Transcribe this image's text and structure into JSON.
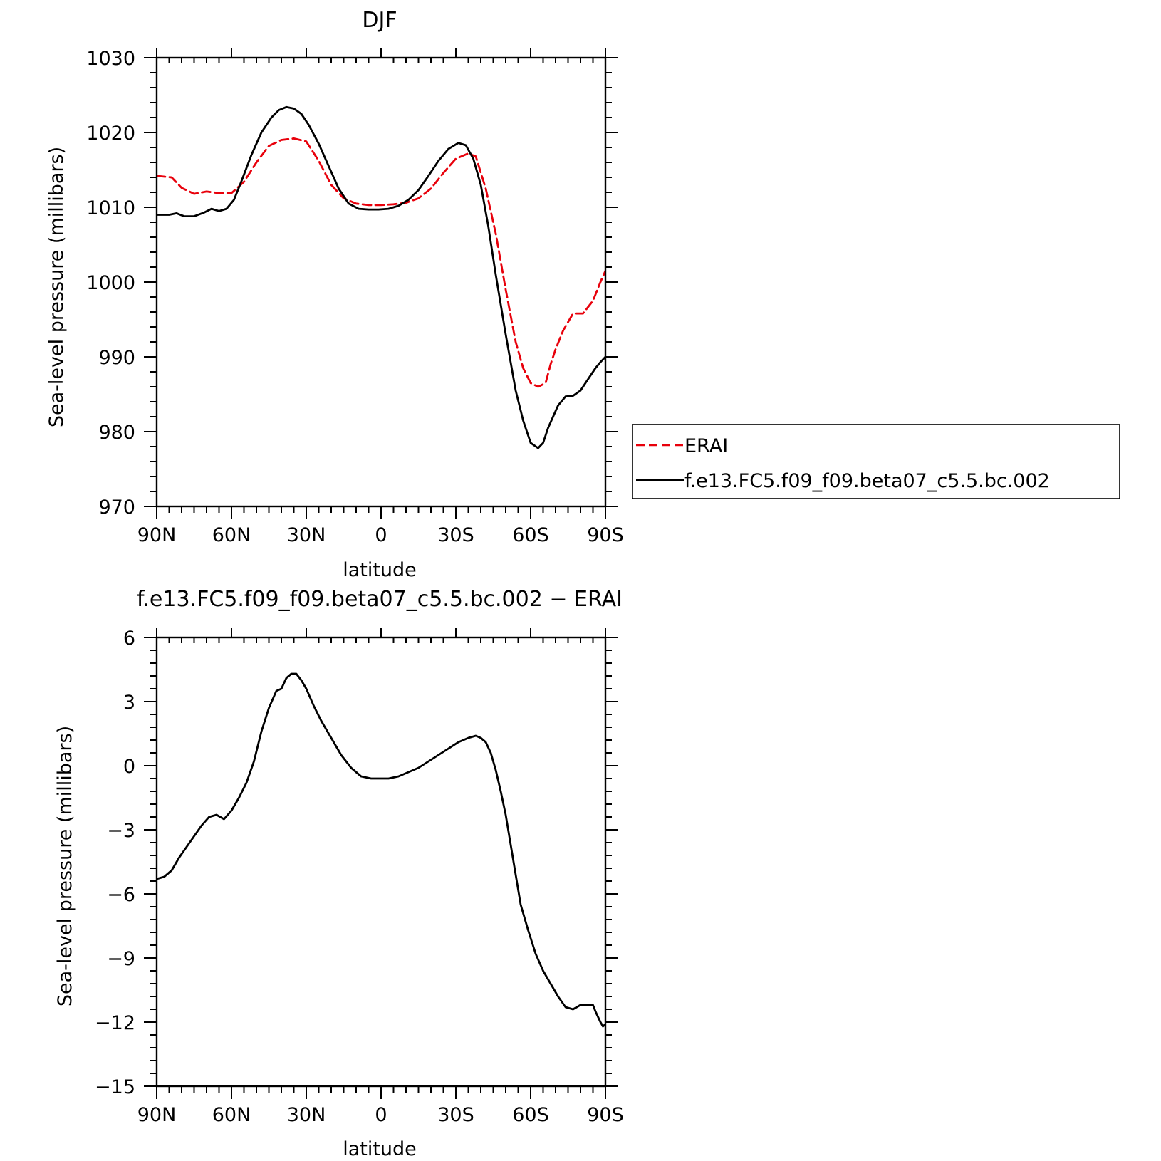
{
  "chart_data": [
    {
      "type": "line",
      "title": "DJF",
      "xlabel": "latitude",
      "ylabel": "Sea-level pressure (millibars)",
      "xlim": [
        90,
        -90
      ],
      "ylim": [
        970,
        1030
      ],
      "x_ticks": [
        90,
        60,
        30,
        0,
        -30,
        -60,
        -90
      ],
      "x_tick_labels": [
        "90N",
        "60N",
        "30N",
        "0",
        "30S",
        "60S",
        "90S"
      ],
      "y_ticks": [
        970,
        980,
        990,
        1000,
        1010,
        1020,
        1030
      ],
      "y_tick_labels": [
        "970",
        "980",
        "990",
        "1000",
        "1010",
        "1020",
        "1030"
      ],
      "grid": false,
      "legend": "right",
      "series": [
        {
          "name": "ERAI",
          "color": "#e8000b",
          "dash": "dashed",
          "x": [
            90,
            84,
            80,
            75,
            70,
            65,
            60,
            55,
            50,
            45,
            40,
            35,
            30,
            25,
            20,
            15,
            10,
            5,
            0,
            -5,
            -10,
            -15,
            -20,
            -25,
            -30,
            -35,
            -38,
            -42,
            -46,
            -50,
            -54,
            -57,
            -60,
            -63,
            -66,
            -68,
            -70,
            -73,
            -77,
            -81,
            -85,
            -88,
            -90
          ],
          "values": [
            1014.2,
            1014.0,
            1012.6,
            1011.8,
            1012.1,
            1011.9,
            1011.9,
            1013.4,
            1016.0,
            1018.2,
            1019.0,
            1019.2,
            1018.8,
            1016.2,
            1013.0,
            1011.2,
            1010.5,
            1010.3,
            1010.3,
            1010.4,
            1010.6,
            1011.2,
            1012.5,
            1014.6,
            1016.5,
            1017.2,
            1016.8,
            1012.5,
            1006.5,
            999.0,
            992.0,
            988.5,
            986.5,
            986.0,
            986.5,
            989.0,
            991.0,
            993.5,
            995.8,
            995.8,
            997.5,
            1000.0,
            1001.5
          ]
        },
        {
          "name": "f.e13.FC5.f09_f09.beta07_c5.5.bc.002",
          "color": "#000000",
          "dash": "solid",
          "x": [
            90,
            85,
            82,
            79,
            75,
            71,
            68,
            65,
            62,
            59,
            56,
            52,
            48,
            44,
            41,
            38,
            35,
            32,
            29,
            25,
            21,
            17,
            13,
            9,
            5,
            1,
            -3,
            -7,
            -11,
            -15,
            -19,
            -23,
            -27,
            -31,
            -34,
            -37,
            -40,
            -43,
            -46,
            -50,
            -54,
            -57,
            -60,
            -63,
            -65,
            -67,
            -69,
            -71,
            -74,
            -77,
            -80,
            -83,
            -86,
            -88,
            -90
          ],
          "values": [
            1009.0,
            1009.0,
            1009.2,
            1008.8,
            1008.8,
            1009.3,
            1009.8,
            1009.5,
            1009.8,
            1011.0,
            1013.5,
            1017.0,
            1020.0,
            1022.0,
            1023.0,
            1023.4,
            1023.2,
            1022.5,
            1021.0,
            1018.5,
            1015.5,
            1012.5,
            1010.5,
            1009.8,
            1009.7,
            1009.7,
            1009.8,
            1010.2,
            1011.0,
            1012.3,
            1014.2,
            1016.2,
            1017.8,
            1018.6,
            1018.3,
            1016.5,
            1013.0,
            1007.5,
            1001.0,
            993.0,
            985.5,
            981.5,
            978.5,
            977.8,
            978.5,
            980.5,
            982.0,
            983.5,
            984.7,
            984.8,
            985.5,
            987.0,
            988.5,
            989.3,
            990.0
          ]
        }
      ]
    },
    {
      "type": "line",
      "title": "f.e13.FC5.f09_f09.beta07_c5.5.bc.002 − ERAI",
      "xlabel": "latitude",
      "ylabel": "Sea-level pressure (millibars)",
      "xlim": [
        90,
        -90
      ],
      "ylim": [
        -15,
        6
      ],
      "x_ticks": [
        90,
        60,
        30,
        0,
        -30,
        -60,
        -90
      ],
      "x_tick_labels": [
        "90N",
        "60N",
        "30N",
        "0",
        "30S",
        "60S",
        "90S"
      ],
      "y_ticks": [
        -15,
        -12,
        -9,
        -6,
        -3,
        0,
        3,
        6
      ],
      "y_tick_labels": [
        "−15",
        "−12",
        "−9",
        "−6",
        "−3",
        "0",
        "3",
        "6"
      ],
      "grid": false,
      "series": [
        {
          "color": "#000000",
          "dash": "solid",
          "x": [
            90,
            87,
            84,
            81,
            78,
            75,
            72,
            69,
            66,
            63,
            60,
            57,
            54,
            51,
            48,
            45,
            42,
            40,
            38,
            36,
            34,
            32,
            30,
            27,
            24,
            20,
            16,
            12,
            8,
            4,
            0,
            -3,
            -7,
            -11,
            -15,
            -19,
            -23,
            -27,
            -31,
            -35,
            -38,
            -40,
            -42,
            -44,
            -46,
            -48,
            -50,
            -53,
            -56,
            -59,
            -62,
            -65,
            -68,
            -71,
            -74,
            -77,
            -80,
            -82,
            -85,
            -86,
            -88,
            -89,
            -90
          ],
          "values": [
            -5.3,
            -5.2,
            -4.9,
            -4.3,
            -3.8,
            -3.3,
            -2.8,
            -2.4,
            -2.3,
            -2.5,
            -2.1,
            -1.5,
            -0.8,
            0.2,
            1.6,
            2.7,
            3.5,
            3.6,
            4.1,
            4.3,
            4.3,
            4.0,
            3.6,
            2.8,
            2.1,
            1.3,
            0.5,
            -0.1,
            -0.5,
            -0.6,
            -0.6,
            -0.6,
            -0.5,
            -0.3,
            -0.1,
            0.2,
            0.5,
            0.8,
            1.1,
            1.3,
            1.4,
            1.3,
            1.1,
            0.6,
            -0.2,
            -1.2,
            -2.3,
            -4.4,
            -6.5,
            -7.7,
            -8.8,
            -9.6,
            -10.2,
            -10.8,
            -11.3,
            -11.4,
            -11.2,
            -11.2,
            -11.2,
            -11.5,
            -12.0,
            -12.2,
            -12.1
          ]
        }
      ]
    }
  ]
}
